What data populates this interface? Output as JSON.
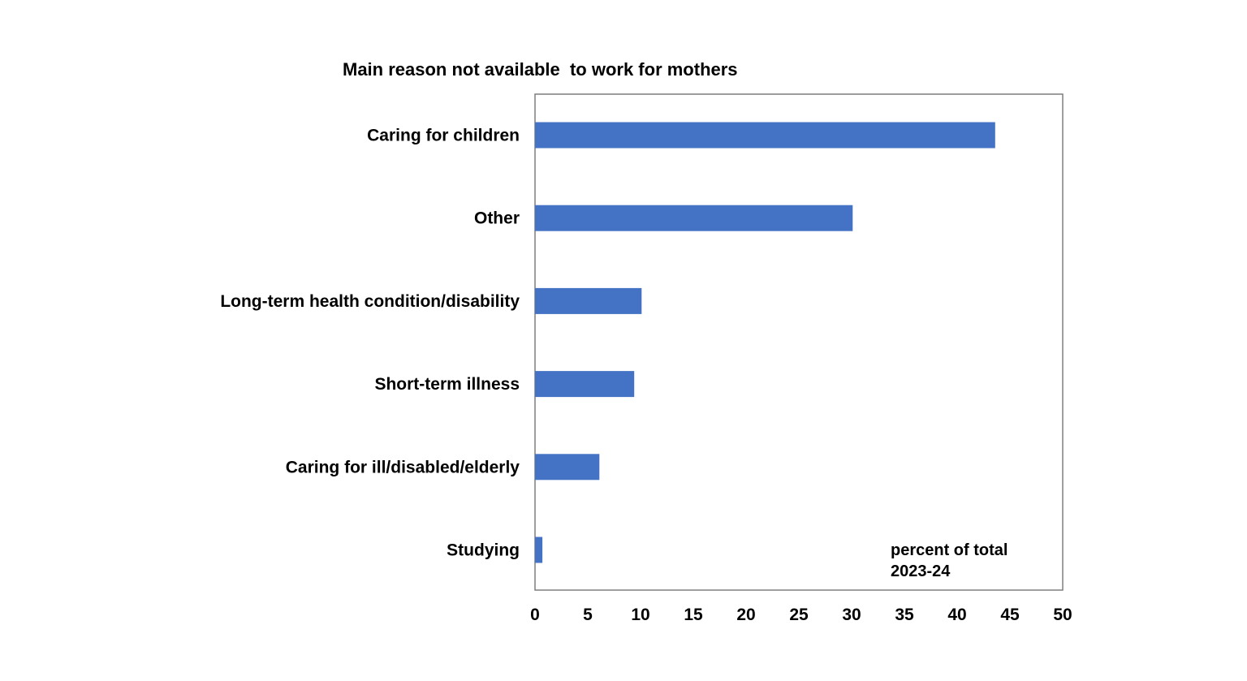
{
  "chart_data": {
    "type": "bar",
    "orientation": "horizontal",
    "title": "Main reason not available  to work for mothers",
    "categories": [
      "Caring for children",
      "Other",
      "Long-term health condition/disability",
      "Short-term illness",
      "Caring for ill/disabled/elderly",
      "Studying"
    ],
    "values": [
      43.6,
      30.1,
      10.1,
      9.4,
      6.1,
      0.7
    ],
    "xlim": [
      0,
      50
    ],
    "x_ticks": [
      0,
      5,
      10,
      15,
      20,
      25,
      30,
      35,
      40,
      45,
      50
    ],
    "xlabel": "",
    "ylabel": "",
    "annotations": [
      "percent of total",
      "2023-24"
    ],
    "grid": false,
    "legend": "none",
    "bar_color": "#4472C4",
    "frame_color": "#7F7F7F"
  }
}
